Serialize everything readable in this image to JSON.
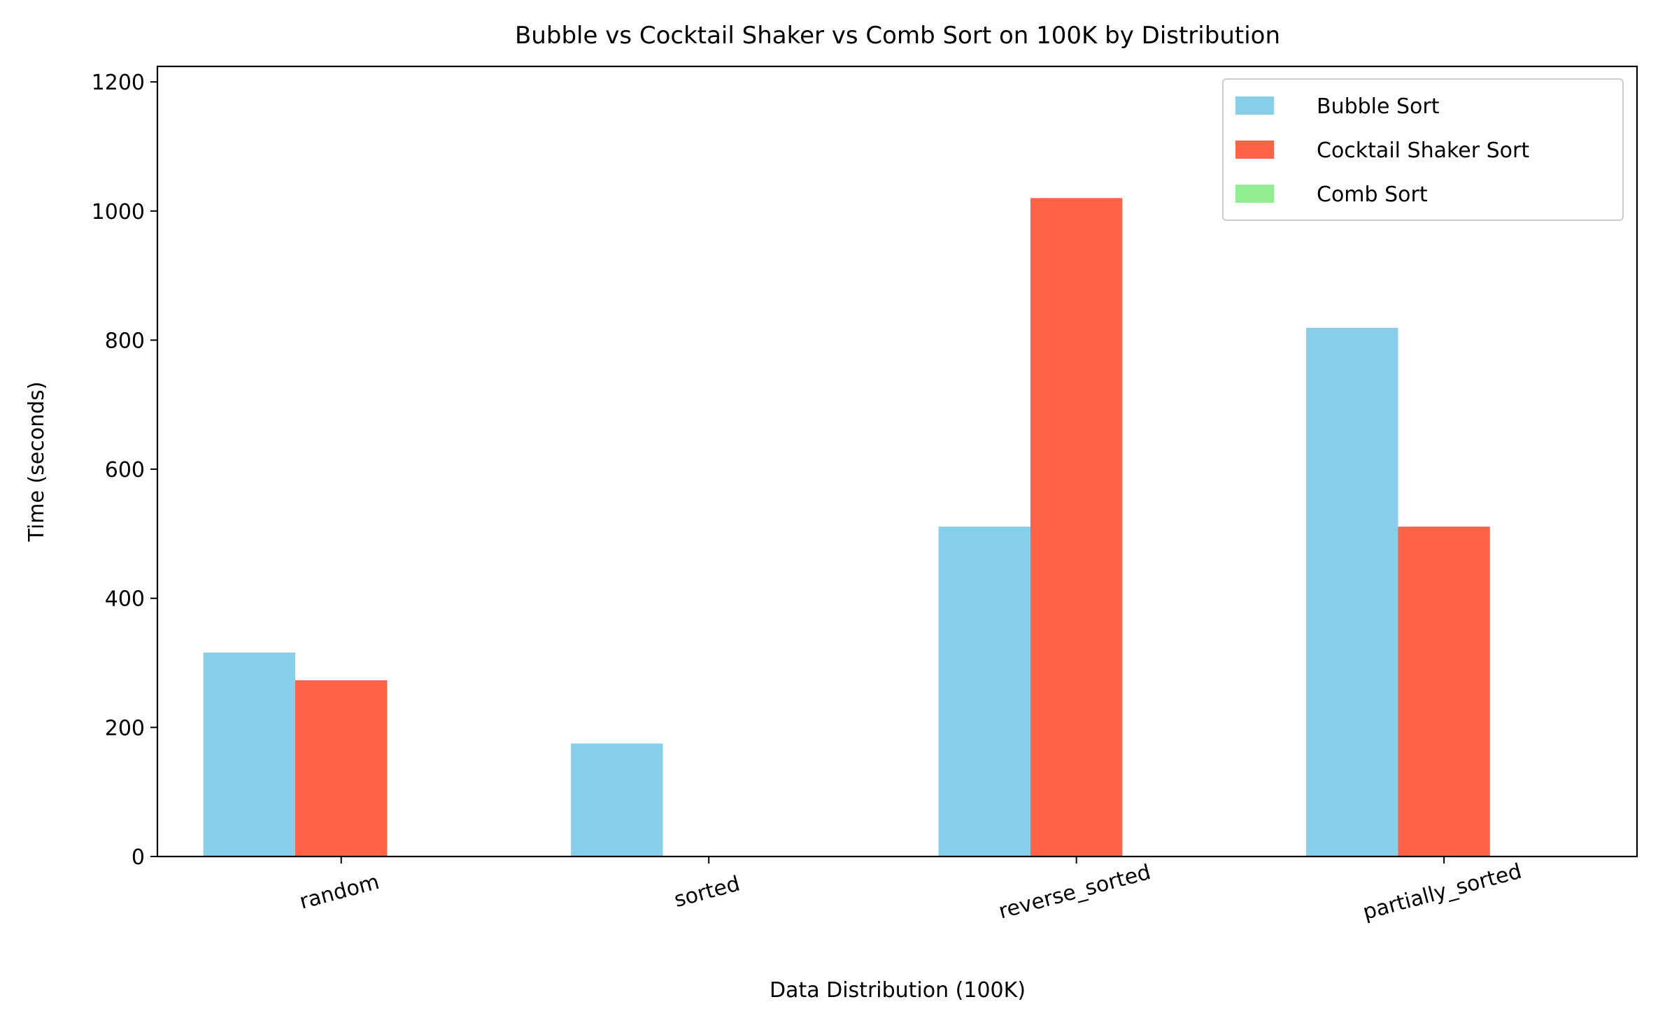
{
  "chart_data": {
    "type": "bar",
    "title": "Bubble vs Cocktail Shaker vs Comb Sort on 100K by Distribution",
    "xlabel": "Data Distribution (100K)",
    "ylabel": "Time (seconds)",
    "categories": [
      "random",
      "sorted",
      "reverse_sorted",
      "partially_sorted"
    ],
    "series": [
      {
        "name": "Bubble Sort",
        "color": "#87CEEB",
        "values": [
          316,
          175,
          511,
          819
        ]
      },
      {
        "name": "Cocktail Shaker Sort",
        "color": "#FF6347",
        "values": [
          273,
          0,
          1020,
          511
        ]
      },
      {
        "name": "Comb Sort",
        "color": "#90EE90",
        "values": [
          0,
          0,
          0,
          0
        ]
      }
    ],
    "ylim": [
      0,
      1224
    ],
    "yticks": [
      0,
      200,
      400,
      600,
      800,
      1000,
      1200
    ],
    "grid": false,
    "legend_position": "top-right"
  }
}
